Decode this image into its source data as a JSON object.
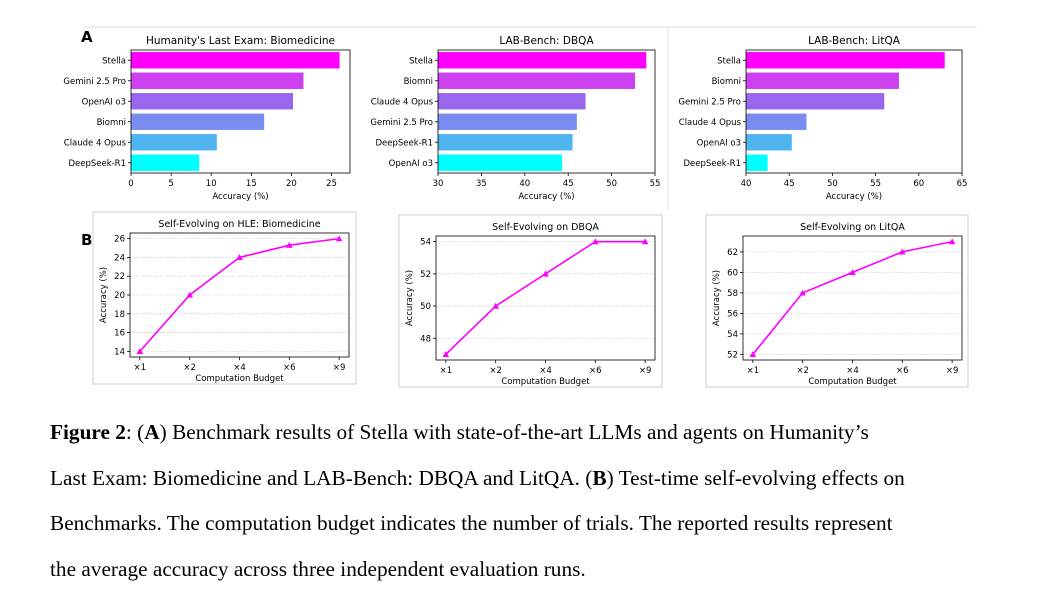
{
  "figure": {
    "panel_a_letter": "A",
    "panel_b_letter": "B"
  },
  "chart_data": [
    {
      "type": "bar",
      "orientation": "horizontal",
      "title": "Humanity's Last Exam: Biomedicine",
      "xlabel": "Accuracy (%)",
      "ylabel": "",
      "categories": [
        "Stella",
        "Gemini 2.5 Pro",
        "OpenAI o3",
        "Biomni",
        "Claude 4 Opus",
        "DeepSeek-R1"
      ],
      "values": [
        26,
        21.5,
        20.2,
        16.6,
        10.7,
        8.5
      ],
      "colors": [
        "#ff00ff",
        "#cc40f0",
        "#9966f0",
        "#7a8cf0",
        "#4fb4f0",
        "#00ffff"
      ],
      "xlim": [
        0,
        27.3
      ],
      "xticks": [
        0,
        5,
        10,
        15,
        20,
        25
      ]
    },
    {
      "type": "bar",
      "orientation": "horizontal",
      "title": "LAB-Bench: DBQA",
      "xlabel": "Accuracy (%)",
      "ylabel": "",
      "categories": [
        "Stella",
        "Biomni",
        "Claude 4 Opus",
        "Gemini 2.5 Pro",
        "DeepSeek-R1",
        "OpenAI o3"
      ],
      "values": [
        54,
        52.7,
        47,
        46,
        45.5,
        44.3
      ],
      "colors": [
        "#ff00ff",
        "#cc40f0",
        "#9966f0",
        "#7a8cf0",
        "#4fb4f0",
        "#00ffff"
      ],
      "xlim": [
        30,
        55
      ],
      "xticks": [
        30,
        35,
        40,
        45,
        50,
        55
      ]
    },
    {
      "type": "bar",
      "orientation": "horizontal",
      "title": "LAB-Bench: LitQA",
      "xlabel": "Accuracy (%)",
      "ylabel": "",
      "categories": [
        "Stella",
        "Biomni",
        "Gemini 2.5 Pro",
        "Claude 4 Opus",
        "OpenAI o3",
        "DeepSeek-R1"
      ],
      "values": [
        63,
        57.7,
        56,
        47,
        45.3,
        42.5
      ],
      "colors": [
        "#ff00ff",
        "#cc40f0",
        "#9966f0",
        "#7a8cf0",
        "#4fb4f0",
        "#00ffff"
      ],
      "xlim": [
        40,
        65
      ],
      "xticks": [
        40,
        45,
        50,
        55,
        60,
        65
      ]
    },
    {
      "type": "line",
      "title": "Self-Evolving on HLE: Biomedicine",
      "xlabel": "Computation Budget",
      "ylabel": "Accuracy (%)",
      "categories": [
        "×1",
        "×2",
        "×4",
        "×6",
        "×9"
      ],
      "series": [
        {
          "name": "Stella",
          "values": [
            14,
            20,
            24,
            25.3,
            26
          ]
        }
      ],
      "ylim": [
        13.4,
        26.6
      ],
      "yticks": [
        14,
        16,
        18,
        20,
        22,
        24,
        26
      ],
      "color": "#ff00ff",
      "marker": "triangle",
      "grid": "y-dotted"
    },
    {
      "type": "line",
      "title": "Self-Evolving on DBQA",
      "xlabel": "Computation Budget",
      "ylabel": "Accuracy (%)",
      "categories": [
        "×1",
        "×2",
        "×4",
        "×6",
        "×9"
      ],
      "series": [
        {
          "name": "Stella",
          "values": [
            47,
            50,
            52,
            54,
            54
          ]
        }
      ],
      "ylim": [
        46.65,
        54.35
      ],
      "yticks": [
        48,
        50,
        52,
        54
      ],
      "color": "#ff00ff",
      "marker": "triangle",
      "grid": "y-dotted"
    },
    {
      "type": "line",
      "title": "Self-Evolving on LitQA",
      "xlabel": "Computation Budget",
      "ylabel": "Accuracy (%)",
      "categories": [
        "×1",
        "×2",
        "×4",
        "×6",
        "×9"
      ],
      "series": [
        {
          "name": "Stella",
          "values": [
            52,
            58,
            60,
            62,
            63
          ]
        }
      ],
      "ylim": [
        51.45,
        63.55
      ],
      "yticks": [
        52,
        54,
        56,
        58,
        60,
        62
      ],
      "color": "#ff00ff",
      "marker": "triangle",
      "grid": "y-dotted"
    }
  ],
  "caption": {
    "label": "Figure 2",
    "sep1": ": (",
    "a_letter": "A",
    "a_text_l1": ") Benchmark results of Stella with state-of-the-art LLMs and agents on Humanity’s",
    "a_text_l2": "Last Exam: Biomedicine and LAB-Bench: DBQA and LitQA. (",
    "b_letter": "B",
    "b_text_l2": ") Test-time self-evolving effects on",
    "line3": "Benchmarks. The computation budget indicates the number of trials. The reported results represent",
    "line4": "the average accuracy across three independent evaluation runs."
  }
}
